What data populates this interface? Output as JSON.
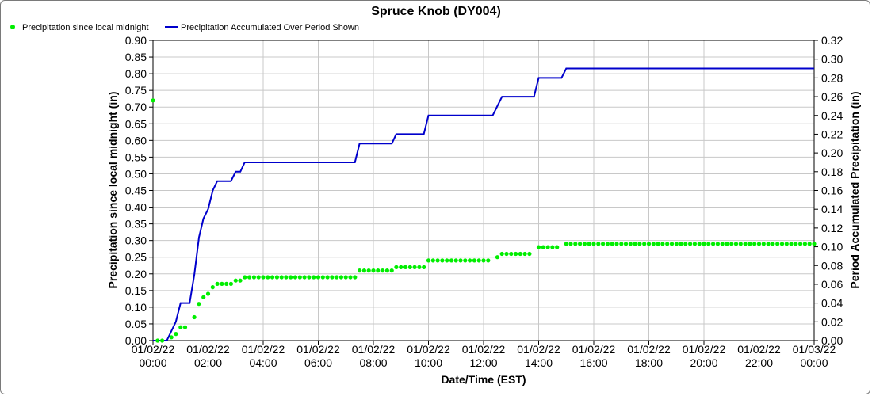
{
  "chart_data": {
    "type": "line",
    "title": "Spruce Knob (DY004)",
    "xlabel": "Date/Time (EST)",
    "ylabel_left": "Precipitation since local midnight (in)",
    "ylabel_right": "Period Accumulated Precipitation (in)",
    "x_ticks": [
      {
        "hour": 0,
        "date": "01/02/22",
        "time": "00:00"
      },
      {
        "hour": 2,
        "date": "01/02/22",
        "time": "02:00"
      },
      {
        "hour": 4,
        "date": "01/02/22",
        "time": "04:00"
      },
      {
        "hour": 6,
        "date": "01/02/22",
        "time": "06:00"
      },
      {
        "hour": 8,
        "date": "01/02/22",
        "time": "08:00"
      },
      {
        "hour": 10,
        "date": "01/02/22",
        "time": "10:00"
      },
      {
        "hour": 12,
        "date": "01/02/22",
        "time": "12:00"
      },
      {
        "hour": 14,
        "date": "01/02/22",
        "time": "14:00"
      },
      {
        "hour": 16,
        "date": "01/02/22",
        "time": "16:00"
      },
      {
        "hour": 18,
        "date": "01/02/22",
        "time": "18:00"
      },
      {
        "hour": 20,
        "date": "01/02/22",
        "time": "20:00"
      },
      {
        "hour": 22,
        "date": "01/02/22",
        "time": "22:00"
      },
      {
        "hour": 24,
        "date": "01/03/22",
        "time": "00:00"
      }
    ],
    "x_range_hours": [
      0,
      24
    ],
    "y_left_range": [
      0,
      0.9
    ],
    "y_left_ticks": [
      "0.00",
      "0.05",
      "0.10",
      "0.15",
      "0.20",
      "0.25",
      "0.30",
      "0.35",
      "0.40",
      "0.45",
      "0.50",
      "0.55",
      "0.60",
      "0.65",
      "0.70",
      "0.75",
      "0.80",
      "0.85",
      "0.90"
    ],
    "y_right_range": [
      0,
      0.32
    ],
    "y_right_ticks": [
      "0.00",
      "0.02",
      "0.04",
      "0.06",
      "0.08",
      "0.10",
      "0.12",
      "0.14",
      "0.16",
      "0.18",
      "0.20",
      "0.22",
      "0.24",
      "0.26",
      "0.28",
      "0.30",
      "0.32"
    ],
    "grid": true,
    "legend_placement": "top-left",
    "series": [
      {
        "name": "Precipitation since local midnight",
        "kind": "scatter",
        "axis": "left",
        "color": "#00ee00",
        "step_minutes": 10,
        "segments": [
          {
            "from": 0.0,
            "to": 0.0,
            "value": 0.72
          },
          {
            "from": 0.167,
            "to": 0.5,
            "value": 0.0
          },
          {
            "from": 0.667,
            "to": 0.667,
            "value": 0.01
          },
          {
            "from": 0.833,
            "to": 0.833,
            "value": 0.02
          },
          {
            "from": 1.0,
            "to": 1.333,
            "value": 0.04
          },
          {
            "from": 1.5,
            "to": 1.5,
            "value": 0.07
          },
          {
            "from": 1.667,
            "to": 1.667,
            "value": 0.11
          },
          {
            "from": 1.833,
            "to": 1.833,
            "value": 0.13
          },
          {
            "from": 2.0,
            "to": 2.0,
            "value": 0.14
          },
          {
            "from": 2.167,
            "to": 2.167,
            "value": 0.16
          },
          {
            "from": 2.333,
            "to": 2.833,
            "value": 0.17
          },
          {
            "from": 3.0,
            "to": 3.167,
            "value": 0.18
          },
          {
            "from": 3.333,
            "to": 7.333,
            "value": 0.19
          },
          {
            "from": 7.5,
            "to": 8.667,
            "value": 0.21
          },
          {
            "from": 8.833,
            "to": 9.833,
            "value": 0.22
          },
          {
            "from": 10.0,
            "to": 12.333,
            "value": 0.24
          },
          {
            "from": 12.5,
            "to": 12.5,
            "value": 0.25
          },
          {
            "from": 12.667,
            "to": 13.833,
            "value": 0.26
          },
          {
            "from": 14.0,
            "to": 14.833,
            "value": 0.28
          },
          {
            "from": 15.0,
            "to": 24.0,
            "value": 0.29
          }
        ]
      },
      {
        "name": "Precipitation Accumulated Over Period Shown",
        "kind": "line",
        "axis": "right",
        "color": "#0000cc",
        "points": [
          [
            0.0,
            0.0
          ],
          [
            0.5,
            0.0
          ],
          [
            0.83,
            0.02
          ],
          [
            1.0,
            0.04
          ],
          [
            1.33,
            0.04
          ],
          [
            1.5,
            0.07
          ],
          [
            1.67,
            0.11
          ],
          [
            1.83,
            0.13
          ],
          [
            2.0,
            0.14
          ],
          [
            2.17,
            0.16
          ],
          [
            2.33,
            0.17
          ],
          [
            2.83,
            0.17
          ],
          [
            3.0,
            0.18
          ],
          [
            3.17,
            0.18
          ],
          [
            3.33,
            0.19
          ],
          [
            7.33,
            0.19
          ],
          [
            7.5,
            0.21
          ],
          [
            8.67,
            0.21
          ],
          [
            8.83,
            0.22
          ],
          [
            9.83,
            0.22
          ],
          [
            10.0,
            0.24
          ],
          [
            12.33,
            0.24
          ],
          [
            12.5,
            0.25
          ],
          [
            12.67,
            0.26
          ],
          [
            13.83,
            0.26
          ],
          [
            14.0,
            0.28
          ],
          [
            14.83,
            0.28
          ],
          [
            15.0,
            0.29
          ],
          [
            24.0,
            0.29
          ]
        ]
      }
    ]
  }
}
